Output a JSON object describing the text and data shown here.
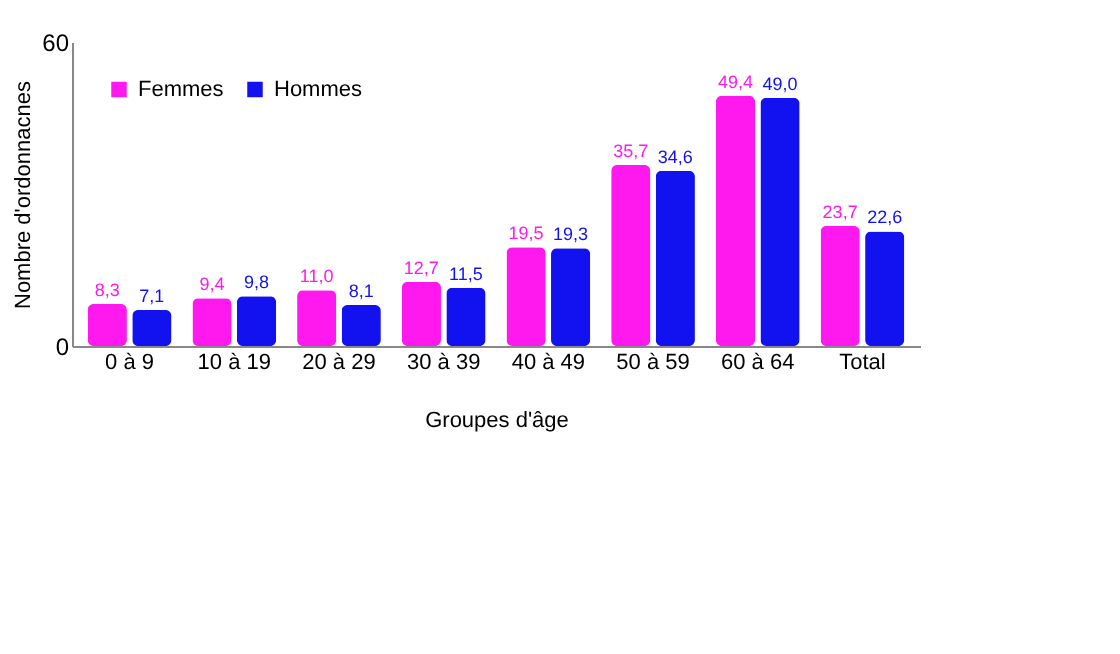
{
  "chart_data": {
    "type": "bar",
    "xlabel": "Groupes d'âge",
    "ylabel": "Nombre d'ordonnacnes",
    "categories": [
      "0 à 9",
      "10 à 19",
      "20 à 29",
      "30 à 39",
      "40 à 49",
      "50 à 59",
      "60 à 64",
      "Total"
    ],
    "series": [
      {
        "name": "Femmes",
        "color": "#ff19ee",
        "values": [
          8.3,
          9.4,
          11.0,
          12.7,
          19.5,
          35.7,
          49.4,
          23.7
        ],
        "value_labels": [
          "8,3",
          "9,4",
          "11,0",
          "12,7",
          "19,5",
          "35,7",
          "49,4",
          "23,7"
        ]
      },
      {
        "name": "Hommes",
        "color": "#1212f0",
        "values": [
          7.1,
          9.8,
          8.1,
          11.5,
          19.3,
          34.6,
          49.0,
          22.6
        ],
        "value_labels": [
          "7,1",
          "9,8",
          "8,1",
          "11,5",
          "19,3",
          "34,6",
          "49,0",
          "22,6"
        ]
      }
    ],
    "ylim": [
      0,
      60
    ],
    "yticks": [
      0,
      60
    ],
    "grid": false,
    "legend": "top left"
  }
}
